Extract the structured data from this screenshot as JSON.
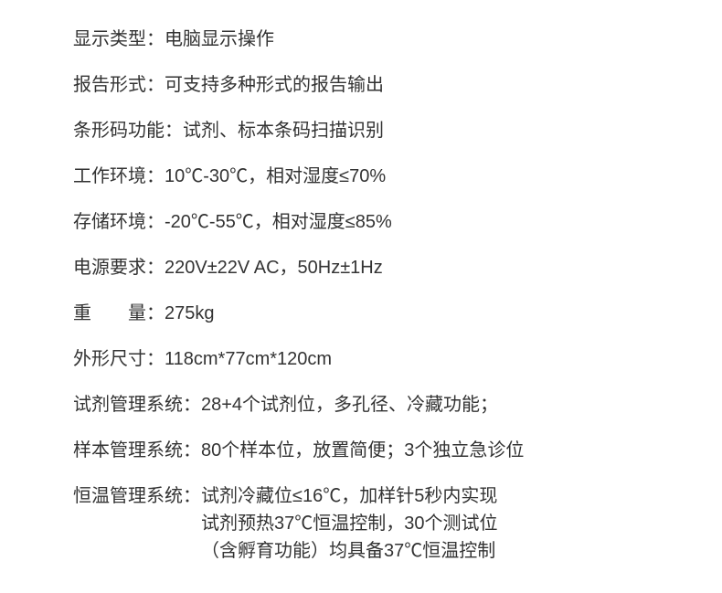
{
  "text_color": "#333333",
  "background_color": "#ffffff",
  "font_size_pt": 15,
  "line_spacing": 20,
  "specs": {
    "display_type": {
      "label": "显示类型：",
      "value": "电脑显示操作"
    },
    "report_form": {
      "label": "报告形式：",
      "value": "可支持多种形式的报告输出"
    },
    "barcode": {
      "label": "条形码功能：",
      "value": "试剂、标本条码扫描识别"
    },
    "work_env": {
      "label": "工作环境：",
      "value": "10℃-30℃，相对湿度≤70%"
    },
    "storage_env": {
      "label": "存储环境：",
      "value": "-20℃-55℃，相对湿度≤85%"
    },
    "power": {
      "label": "电源要求：",
      "value": "220V±22V AC，50Hz±1Hz"
    },
    "weight": {
      "label": "重　　量：",
      "value": "275kg"
    },
    "dimensions": {
      "label": "外形尺寸：",
      "value": "118cm*77cm*120cm"
    },
    "reagent_sys": {
      "label": "试剂管理系统：",
      "value": "28+4个试剂位，多孔径、冷藏功能；"
    },
    "sample_sys": {
      "label": "样本管理系统：",
      "value": "80个样本位，放置简便；3个独立急诊位"
    },
    "temp_sys": {
      "label": "恒温管理系统：",
      "lines": [
        "试剂冷藏位≤16℃，加样针5秒内实现",
        "试剂预热37℃恒温控制，30个测试位",
        "（含孵育功能）均具备37℃恒温控制"
      ]
    }
  }
}
